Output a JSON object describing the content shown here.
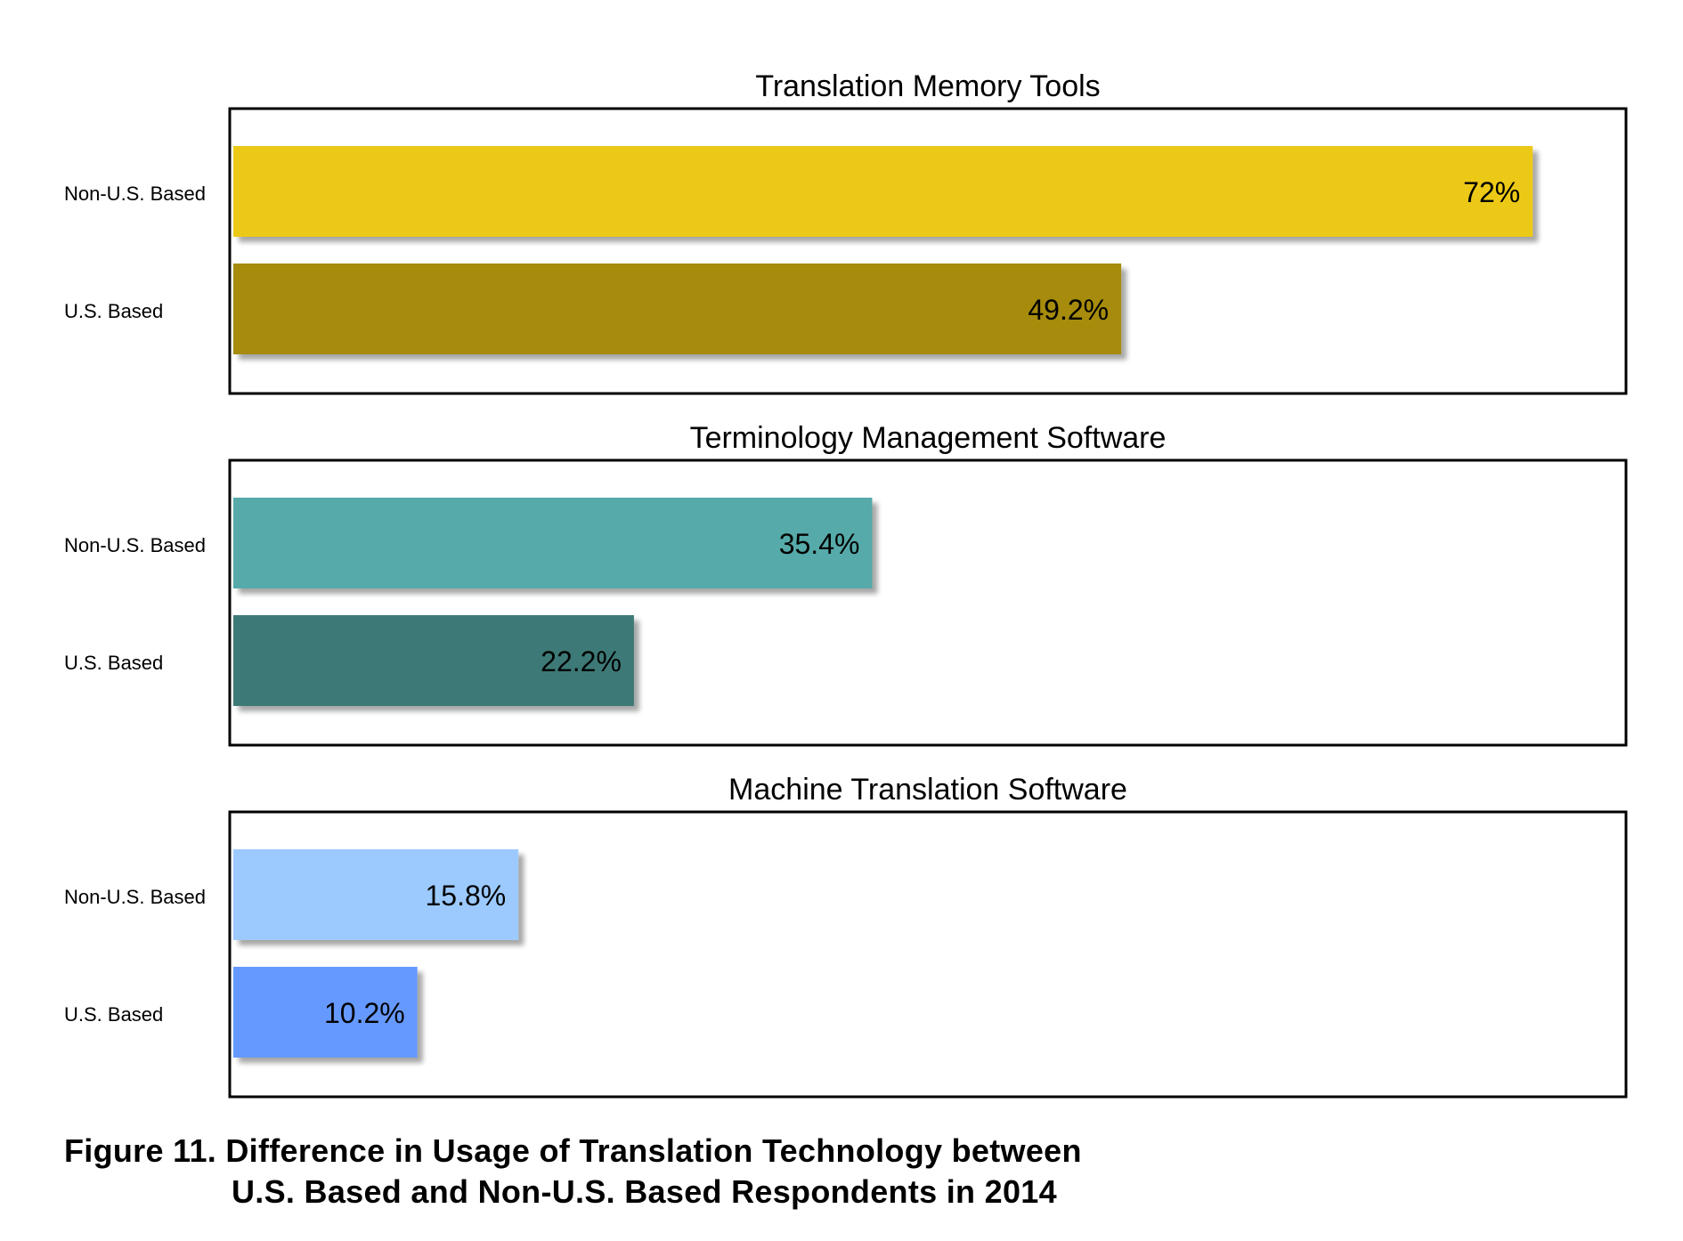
{
  "figure_caption": {
    "line1": "Figure 11. Difference in Usage of Translation Technology between",
    "line2": "U.S. Based and Non-U.S. Based Respondents in 2014"
  },
  "chart_data": [
    {
      "type": "bar",
      "orientation": "horizontal",
      "title": "Translation Memory Tools",
      "categories": [
        "Non-U.S. Based",
        "U.S. Based"
      ],
      "values": [
        72,
        49.2
      ],
      "value_labels": [
        "72%",
        "49.2%"
      ],
      "colors": [
        "#ECC917",
        "#A68B10"
      ],
      "xlim": [
        0,
        75
      ],
      "grid": false
    },
    {
      "type": "bar",
      "orientation": "horizontal",
      "title": "Terminology Management Software",
      "categories": [
        "Non-U.S. Based",
        "U.S. Based"
      ],
      "values": [
        35.4,
        22.2
      ],
      "value_labels": [
        "35.4%",
        "22.2%"
      ],
      "colors": [
        "#56AAA9",
        "#3E7A77"
      ],
      "xlim": [
        0,
        75
      ],
      "grid": false
    },
    {
      "type": "bar",
      "orientation": "horizontal",
      "title": "Machine Translation Software",
      "categories": [
        "Non-U.S. Based",
        "U.S. Based"
      ],
      "values": [
        15.8,
        10.2
      ],
      "value_labels": [
        "15.8%",
        "10.2%"
      ],
      "colors": [
        "#9CCAFF",
        "#6699FF"
      ],
      "xlim": [
        0,
        75
      ],
      "grid": false
    }
  ]
}
